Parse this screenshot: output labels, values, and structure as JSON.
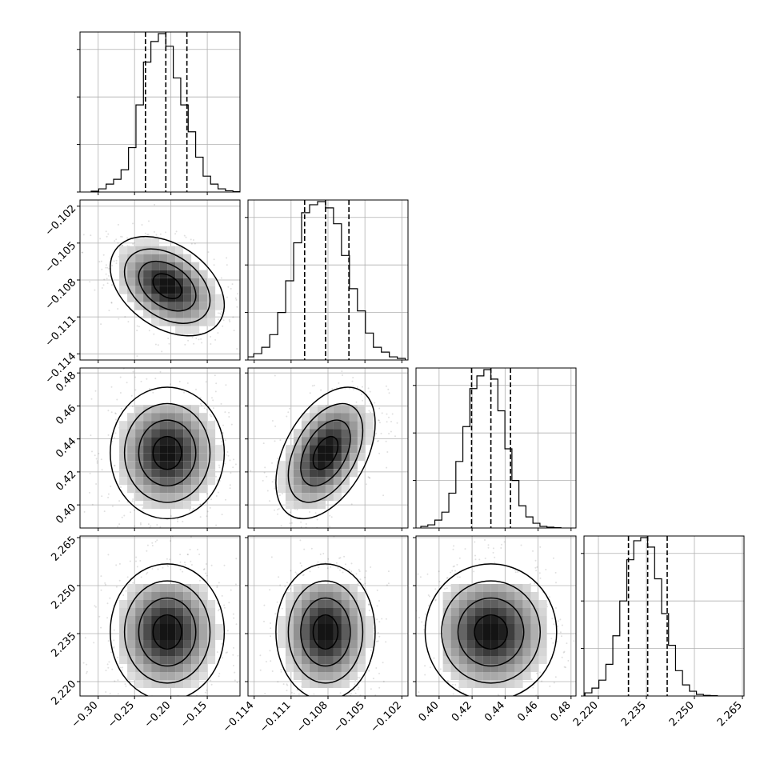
{
  "chart_data": {
    "type": "corner",
    "n_params": 4,
    "grid": true,
    "params": [
      {
        "index": 0,
        "range": [
          -0.325,
          -0.105
        ],
        "ticks": [
          -0.3,
          -0.25,
          -0.2,
          -0.15
        ],
        "tick_labels": [
          "−0.30",
          "−0.25",
          "−0.20",
          "−0.15"
        ],
        "quantiles": [
          -0.235,
          -0.207,
          -0.178
        ]
      },
      {
        "index": 1,
        "range": [
          -0.1145,
          -0.1015
        ],
        "ticks": [
          -0.114,
          -0.111,
          -0.108,
          -0.105,
          -0.102
        ],
        "tick_labels": [
          "−0.114",
          "−0.111",
          "−0.108",
          "−0.105",
          "−0.102"
        ],
        "quantiles": [
          -0.1099,
          -0.1082,
          -0.1063
        ]
      },
      {
        "index": 2,
        "range": [
          0.386,
          0.483
        ],
        "ticks": [
          0.4,
          0.42,
          0.44,
          0.46,
          0.48
        ],
        "tick_labels": [
          "0.40",
          "0.42",
          "0.44",
          "0.46",
          "0.48"
        ],
        "quantiles": [
          0.4197,
          0.4314,
          0.4433
        ]
      },
      {
        "index": 3,
        "range": [
          2.2155,
          2.2655
        ],
        "ticks": [
          2.22,
          2.235,
          2.25,
          2.265
        ],
        "tick_labels": [
          "2.220",
          "2.235",
          "2.250",
          "2.265"
        ],
        "quantiles": [
          2.2294,
          2.2354,
          2.2415
        ]
      }
    ],
    "histograms": [
      {
        "param": 0,
        "counts": [
          0.005,
          0.02,
          0.05,
          0.08,
          0.14,
          0.28,
          0.55,
          0.82,
          0.95,
          1.0,
          0.92,
          0.72,
          0.55,
          0.38,
          0.22,
          0.1,
          0.05,
          0.02,
          0.008,
          0.002
        ]
      },
      {
        "param": 1,
        "counts": [
          0.02,
          0.04,
          0.08,
          0.16,
          0.3,
          0.5,
          0.74,
          0.93,
          0.98,
          1.0,
          0.96,
          0.86,
          0.66,
          0.45,
          0.31,
          0.17,
          0.08,
          0.05,
          0.02,
          0.01
        ]
      },
      {
        "param": 2,
        "counts": [
          0.01,
          0.02,
          0.05,
          0.1,
          0.22,
          0.42,
          0.64,
          0.88,
          0.96,
          1.0,
          0.94,
          0.74,
          0.5,
          0.3,
          0.14,
          0.07,
          0.03,
          0.01,
          0.005,
          0.002
        ]
      },
      {
        "param": 3,
        "counts": [
          0.005,
          0.02,
          0.05,
          0.1,
          0.2,
          0.38,
          0.6,
          0.86,
          0.98,
          1.0,
          0.94,
          0.74,
          0.52,
          0.32,
          0.16,
          0.07,
          0.03,
          0.01,
          0.004,
          0.002
        ]
      }
    ],
    "pairs": [
      {
        "x": 0,
        "y": 1,
        "center": [
          -0.205,
          -0.1085
        ],
        "sigma": [
          0.035,
          0.0018
        ],
        "rho": -0.38
      },
      {
        "x": 0,
        "y": 2,
        "center": [
          -0.205,
          0.4315
        ],
        "sigma": [
          0.035,
          0.0178
        ],
        "rho": 0.0
      },
      {
        "x": 0,
        "y": 3,
        "center": [
          -0.205,
          2.2355
        ],
        "sigma": [
          0.035,
          0.0095
        ],
        "rho": 0.0
      },
      {
        "x": 1,
        "y": 2,
        "center": [
          -0.1082,
          0.4315
        ],
        "sigma": [
          0.0018,
          0.0178
        ],
        "rho": 0.45
      },
      {
        "x": 1,
        "y": 3,
        "center": [
          -0.1082,
          2.2355
        ],
        "sigma": [
          0.0018,
          0.0095
        ],
        "rho": 0.0
      },
      {
        "x": 2,
        "y": 3,
        "center": [
          0.4314,
          2.2355
        ],
        "sigma": [
          0.0178,
          0.0095
        ],
        "rho": 0.0
      }
    ],
    "contour_levels_sigma": [
      0.5,
      1.0,
      1.5,
      2.0
    ]
  }
}
